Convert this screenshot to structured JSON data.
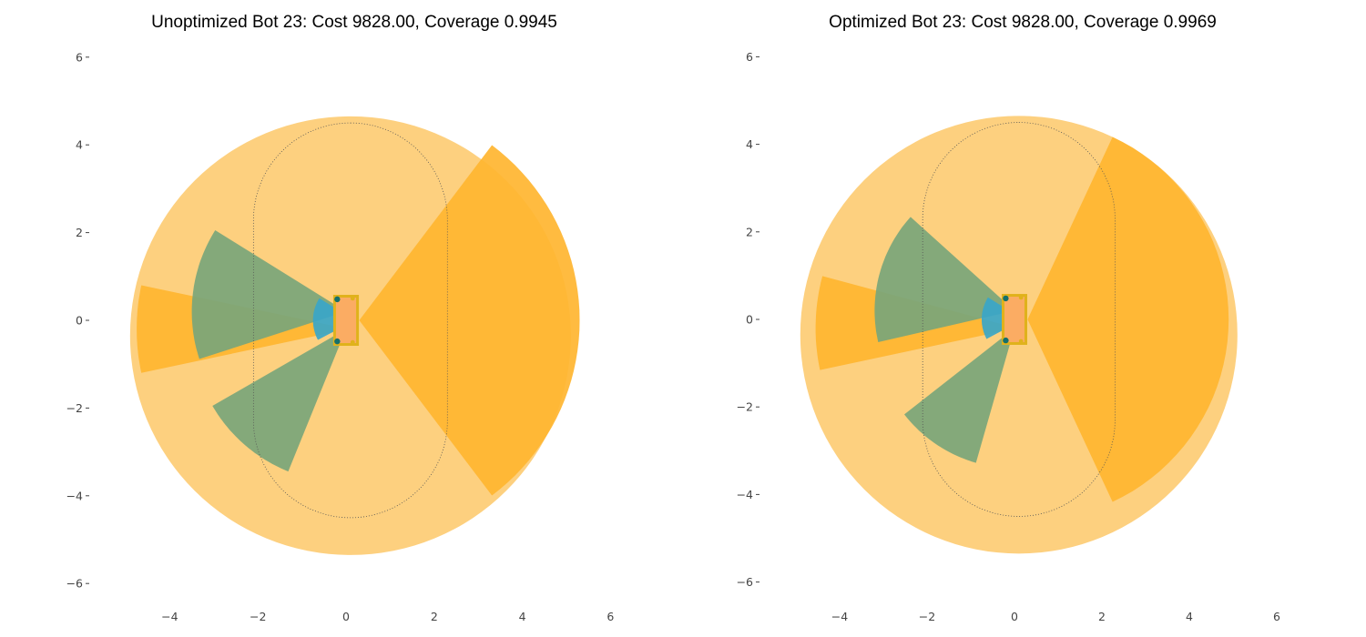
{
  "chart_data": [
    {
      "type": "coverage-plot",
      "title": "Unoptimized Bot 23: Cost 9828.00, Coverage 0.9945",
      "xlim": [
        -5.5,
        6.2
      ],
      "ylim": [
        -6.2,
        6.2
      ],
      "xticks": [
        -4,
        -2,
        0,
        2,
        4,
        6
      ],
      "yticks": [
        -6,
        -4,
        -2,
        0,
        2,
        4,
        6
      ],
      "xtick_labels": [
        "−4",
        "−2",
        "0",
        "2",
        "4",
        "6"
      ],
      "ytick_labels": [
        "−6",
        "−4",
        "−2",
        "0",
        "2",
        "4",
        "6"
      ],
      "grid": false,
      "coverage_circle": {
        "center": [
          0.1,
          -0.35
        ],
        "radius": 5.0,
        "color": "#fdd07f"
      },
      "target_region": {
        "type": "stadium",
        "center": [
          0.1,
          0.0
        ],
        "half_width": 2.2,
        "half_height": 4.5,
        "style": "dotted",
        "color": "#555555"
      },
      "sensors": [
        {
          "name": "front",
          "apex": [
            0.3,
            0.0
          ],
          "radius": 5.0,
          "angle_start": -53,
          "angle_end": 53,
          "color": "#ffb530"
        },
        {
          "name": "rear",
          "apex": [
            0.05,
            -0.2
          ],
          "radius": 4.8,
          "angle_start": 168,
          "angle_end": 192,
          "color": "#ffb530"
        },
        {
          "name": "left",
          "apex": [
            0.0,
            0.2
          ],
          "radius": 3.5,
          "angle_start": 148,
          "angle_end": 198,
          "color": "#7aa57a"
        },
        {
          "name": "right",
          "apex": [
            0.0,
            -0.2
          ],
          "radius": 3.5,
          "angle_start": 210,
          "angle_end": 248,
          "color": "#7aa57a"
        },
        {
          "name": "near",
          "apex": [
            0.2,
            0.0
          ],
          "radius": 0.95,
          "angle_start": 148,
          "angle_end": 208,
          "color": "#3aa6c8"
        }
      ],
      "robot": {
        "center": [
          0.0,
          0.0
        ],
        "half_width": 0.26,
        "half_height": 0.55,
        "body_color": "#fbac63",
        "edge_color": "#e0b21b",
        "sensor_color": "#15706b"
      }
    },
    {
      "type": "coverage-plot",
      "title": "Optimized Bot 23: Cost 9828.00, Coverage 0.9969",
      "xlim": [
        -5.5,
        6.2
      ],
      "ylim": [
        -6.2,
        6.2
      ],
      "xticks": [
        -4,
        -2,
        0,
        2,
        4,
        6
      ],
      "yticks": [
        -6,
        -4,
        -2,
        0,
        2,
        4,
        6
      ],
      "xtick_labels": [
        "−4",
        "−2",
        "0",
        "2",
        "4",
        "6"
      ],
      "ytick_labels": [
        "−6",
        "−4",
        "−2",
        "0",
        "2",
        "4",
        "6"
      ],
      "grid": false,
      "coverage_circle": {
        "center": [
          0.1,
          -0.35
        ],
        "radius": 5.0,
        "color": "#fdd07f"
      },
      "target_region": {
        "type": "stadium",
        "center": [
          0.1,
          0.0
        ],
        "half_width": 2.2,
        "half_height": 4.5,
        "style": "dotted",
        "color": "#555555"
      },
      "sensors": [
        {
          "name": "front",
          "apex": [
            0.3,
            0.0
          ],
          "radius": 4.6,
          "angle_start": -65,
          "angle_end": 65,
          "color": "#ffb530"
        },
        {
          "name": "rear",
          "apex": [
            0.05,
            -0.2
          ],
          "radius": 4.6,
          "angle_start": 165,
          "angle_end": 192,
          "color": "#ffb530"
        },
        {
          "name": "left",
          "apex": [
            0.0,
            0.2
          ],
          "radius": 3.2,
          "angle_start": 138,
          "angle_end": 193,
          "color": "#7aa57a"
        },
        {
          "name": "right",
          "apex": [
            0.0,
            -0.2
          ],
          "radius": 3.2,
          "angle_start": 218,
          "angle_end": 254,
          "color": "#7aa57a"
        },
        {
          "name": "near",
          "apex": [
            0.2,
            0.0
          ],
          "radius": 0.95,
          "angle_start": 148,
          "angle_end": 208,
          "color": "#3aa6c8"
        }
      ],
      "robot": {
        "center": [
          0.0,
          0.0
        ],
        "half_width": 0.26,
        "half_height": 0.55,
        "body_color": "#fbac63",
        "edge_color": "#e0b21b",
        "sensor_color": "#15706b"
      }
    }
  ]
}
